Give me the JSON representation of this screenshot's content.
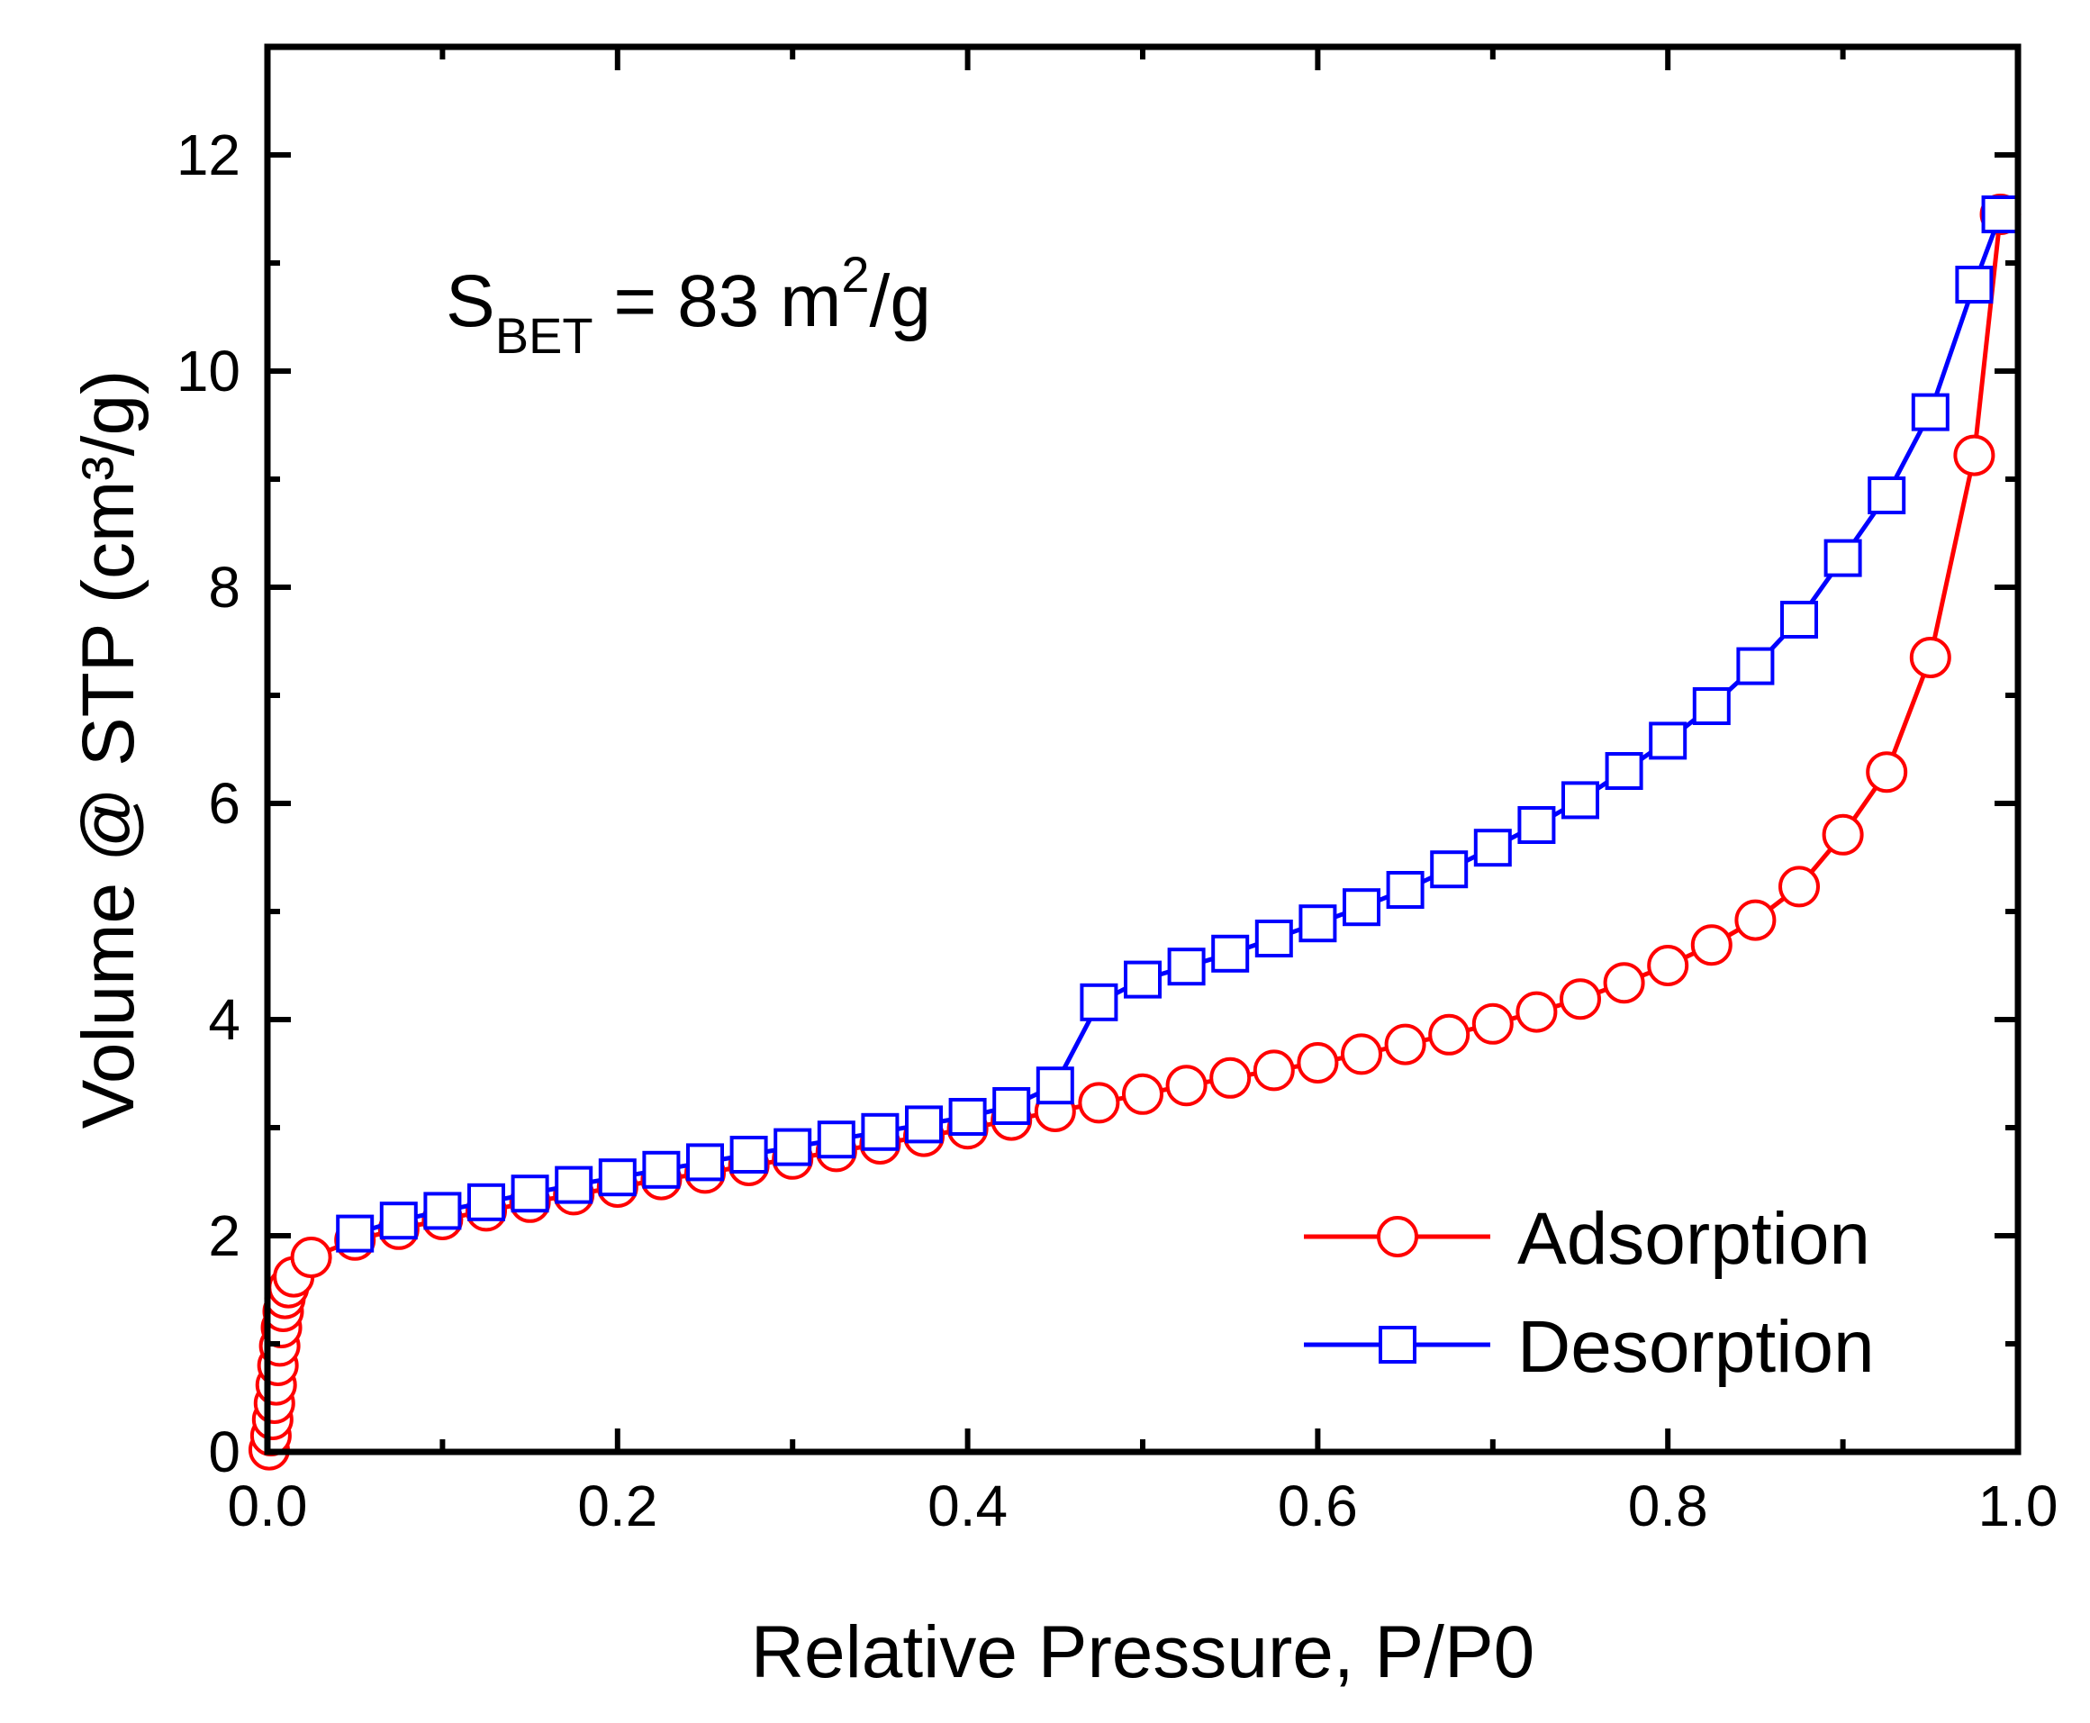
{
  "chart_data": {
    "type": "line",
    "title": "",
    "xlabel": "Relative Pressure, P/P0",
    "ylabel": "Volume @ STP (cm³/g)",
    "xlim": [
      0.0,
      1.0
    ],
    "ylim": [
      0,
      13
    ],
    "x_ticks": [
      0.0,
      0.2,
      0.4,
      0.6,
      0.8,
      1.0
    ],
    "x_tick_labels": [
      "0.0",
      "0.2",
      "0.4",
      "0.6",
      "0.8",
      "1.0"
    ],
    "y_ticks": [
      0,
      2,
      4,
      6,
      8,
      10,
      12
    ],
    "y_tick_labels": [
      "0",
      "2",
      "4",
      "6",
      "8",
      "10",
      "12"
    ],
    "grid": false,
    "legend_position": "bottom-right",
    "annotation": {
      "prefix": "S",
      "subscript": "BET",
      "body": " = 83 m",
      "superscript": "2",
      "suffix": "/g"
    },
    "series": [
      {
        "name": "Adsorption",
        "color": "#ff0000",
        "marker": "circle",
        "points": [
          [
            0.001,
            0.02
          ],
          [
            0.002,
            0.15
          ],
          [
            0.003,
            0.3
          ],
          [
            0.004,
            0.45
          ],
          [
            0.005,
            0.62
          ],
          [
            0.006,
            0.8
          ],
          [
            0.007,
            0.98
          ],
          [
            0.008,
            1.15
          ],
          [
            0.009,
            1.3
          ],
          [
            0.01,
            1.42
          ],
          [
            0.012,
            1.52
          ],
          [
            0.015,
            1.62
          ],
          [
            0.025,
            1.8
          ],
          [
            0.05,
            1.96
          ],
          [
            0.075,
            2.06
          ],
          [
            0.1,
            2.15
          ],
          [
            0.125,
            2.23
          ],
          [
            0.15,
            2.31
          ],
          [
            0.175,
            2.38
          ],
          [
            0.2,
            2.45
          ],
          [
            0.225,
            2.52
          ],
          [
            0.25,
            2.58
          ],
          [
            0.275,
            2.65
          ],
          [
            0.3,
            2.71
          ],
          [
            0.325,
            2.78
          ],
          [
            0.35,
            2.85
          ],
          [
            0.375,
            2.92
          ],
          [
            0.4,
            2.99
          ],
          [
            0.425,
            3.07
          ],
          [
            0.45,
            3.15
          ],
          [
            0.475,
            3.23
          ],
          [
            0.5,
            3.31
          ],
          [
            0.525,
            3.39
          ],
          [
            0.55,
            3.46
          ],
          [
            0.575,
            3.53
          ],
          [
            0.6,
            3.6
          ],
          [
            0.625,
            3.68
          ],
          [
            0.65,
            3.77
          ],
          [
            0.675,
            3.86
          ],
          [
            0.7,
            3.96
          ],
          [
            0.725,
            4.07
          ],
          [
            0.75,
            4.19
          ],
          [
            0.775,
            4.34
          ],
          [
            0.8,
            4.5
          ],
          [
            0.825,
            4.69
          ],
          [
            0.85,
            4.92
          ],
          [
            0.875,
            5.23
          ],
          [
            0.9,
            5.71
          ],
          [
            0.925,
            6.29
          ],
          [
            0.95,
            7.35
          ],
          [
            0.975,
            9.22
          ],
          [
            0.99,
            11.45
          ]
        ]
      },
      {
        "name": "Desorption",
        "color": "#0000ff",
        "marker": "square",
        "points": [
          [
            0.99,
            11.45
          ],
          [
            0.975,
            10.8
          ],
          [
            0.95,
            9.62
          ],
          [
            0.925,
            8.85
          ],
          [
            0.9,
            8.27
          ],
          [
            0.875,
            7.7
          ],
          [
            0.85,
            7.27
          ],
          [
            0.825,
            6.9
          ],
          [
            0.8,
            6.58
          ],
          [
            0.775,
            6.3
          ],
          [
            0.75,
            6.03
          ],
          [
            0.725,
            5.8
          ],
          [
            0.7,
            5.59
          ],
          [
            0.675,
            5.39
          ],
          [
            0.65,
            5.2
          ],
          [
            0.625,
            5.04
          ],
          [
            0.6,
            4.89
          ],
          [
            0.575,
            4.75
          ],
          [
            0.55,
            4.61
          ],
          [
            0.525,
            4.49
          ],
          [
            0.5,
            4.37
          ],
          [
            0.475,
            4.16
          ],
          [
            0.45,
            3.39
          ],
          [
            0.425,
            3.2
          ],
          [
            0.4,
            3.1
          ],
          [
            0.375,
            3.03
          ],
          [
            0.35,
            2.96
          ],
          [
            0.325,
            2.89
          ],
          [
            0.3,
            2.82
          ],
          [
            0.275,
            2.75
          ],
          [
            0.25,
            2.68
          ],
          [
            0.225,
            2.61
          ],
          [
            0.2,
            2.54
          ],
          [
            0.175,
            2.47
          ],
          [
            0.15,
            2.39
          ],
          [
            0.125,
            2.31
          ],
          [
            0.1,
            2.23
          ],
          [
            0.075,
            2.14
          ],
          [
            0.05,
            2.02
          ]
        ]
      }
    ]
  }
}
